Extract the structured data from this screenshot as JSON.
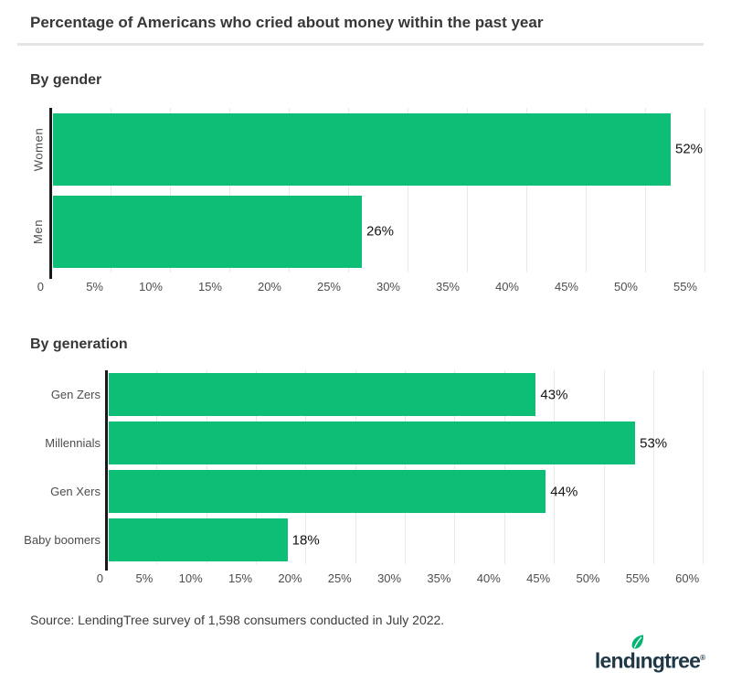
{
  "header": {
    "title": "Percentage of Americans who cried about money within the past year"
  },
  "footer": {
    "source": "Source: LendingTree survey of 1,598 consumers conducted in July 2022.",
    "logo": {
      "pre": "lend",
      "i": "ı",
      "post": "ngtree",
      "reg": "®"
    }
  },
  "colors": {
    "bar_green": "#0cbe76",
    "axis_black": "#181818",
    "grid_gray": "#e9e9e9",
    "divider_gray": "#e4e4e4",
    "logo_navy": "#1f3746",
    "leaf_green": "#00b472",
    "heading_gray": "#373737",
    "tick_gray": "#4d4d4d"
  },
  "chart_data": [
    {
      "type": "bar",
      "orientation": "horizontal",
      "title": "By gender",
      "categories": [
        "Women",
        "Men"
      ],
      "values": [
        52,
        26
      ],
      "value_labels": [
        "52%",
        "26%"
      ],
      "xtick_values": [
        0,
        5,
        10,
        15,
        20,
        25,
        30,
        35,
        40,
        45,
        50,
        55
      ],
      "xtick_labels": [
        "0",
        "5%",
        "10%",
        "15%",
        "20%",
        "25%",
        "30%",
        "35%",
        "40%",
        "45%",
        "50%",
        "55%"
      ],
      "xlim": [
        0,
        56
      ],
      "grid": true,
      "legend": "none",
      "bar_color": "#0cbe76"
    },
    {
      "type": "bar",
      "orientation": "horizontal",
      "title": "By generation",
      "categories": [
        "Gen Zers",
        "Millennials",
        "Gen Xers",
        "Baby boomers"
      ],
      "values": [
        43,
        53,
        44,
        18
      ],
      "value_labels": [
        "43%",
        "53%",
        "44%",
        "18%"
      ],
      "xtick_values": [
        0,
        5,
        10,
        15,
        20,
        25,
        30,
        35,
        40,
        45,
        50,
        55,
        60
      ],
      "xtick_labels": [
        "0",
        "5%",
        "10%",
        "15%",
        "20%",
        "25%",
        "30%",
        "35%",
        "40%",
        "45%",
        "50%",
        "55%",
        "60%"
      ],
      "xlim": [
        0,
        61.5
      ],
      "grid": true,
      "legend": "none",
      "bar_color": "#0cbe76"
    }
  ]
}
